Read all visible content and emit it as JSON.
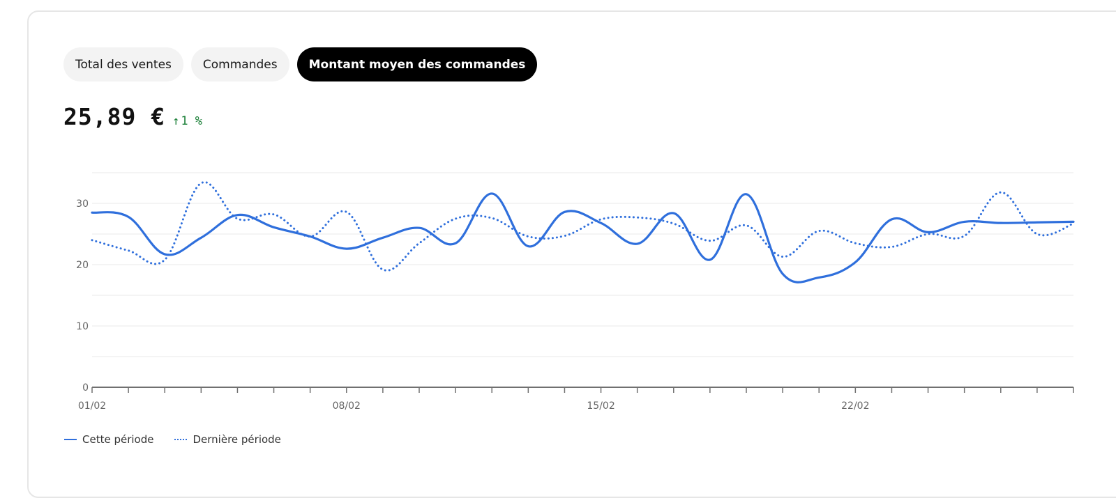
{
  "tabs": [
    {
      "label": "Total des ventes",
      "active": false
    },
    {
      "label": "Commandes",
      "active": false
    },
    {
      "label": "Montant moyen des commandes",
      "active": true
    }
  ],
  "metric": {
    "value": "25,89 €",
    "change_arrow": "↑",
    "change": "1 %",
    "change_color": "#1a7f37"
  },
  "legend": {
    "current": "Cette période",
    "previous": "Dernière période"
  },
  "colors": {
    "series": "#2f6fdc",
    "grid": "#e8e8e8",
    "axis": "#666666"
  },
  "chart_data": {
    "type": "line",
    "ylim": [
      0,
      35
    ],
    "yticks": [
      0,
      10,
      20,
      30
    ],
    "x_tick_labels": [
      {
        "index": 0,
        "label": "01/02"
      },
      {
        "index": 7,
        "label": "08/02"
      },
      {
        "index": 14,
        "label": "15/02"
      },
      {
        "index": 21,
        "label": "22/02"
      }
    ],
    "num_points": 28,
    "series": [
      {
        "name": "Cette période",
        "style": "solid",
        "values": [
          28.5,
          27.8,
          21.7,
          24.4,
          28.1,
          26.1,
          24.6,
          22.6,
          24.4,
          26.0,
          23.5,
          31.6,
          23.0,
          28.6,
          26.8,
          23.4,
          28.4,
          20.8,
          31.5,
          18.5,
          17.9,
          20.4,
          27.4,
          25.3,
          27.0,
          26.8,
          26.9,
          27.0
        ]
      },
      {
        "name": "Dernière période",
        "style": "dotted",
        "values": [
          24.0,
          22.3,
          20.8,
          33.3,
          27.5,
          28.2,
          24.6,
          28.6,
          19.2,
          23.5,
          27.5,
          27.6,
          24.6,
          24.7,
          27.4,
          27.7,
          26.7,
          23.9,
          26.4,
          21.3,
          25.5,
          23.5,
          22.9,
          25.0,
          24.7,
          31.8,
          25.0,
          26.7
        ]
      }
    ]
  }
}
